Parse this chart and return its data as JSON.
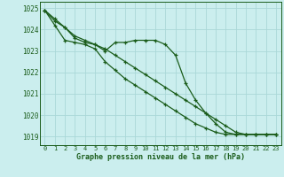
{
  "x": [
    0,
    1,
    2,
    3,
    4,
    5,
    6,
    7,
    8,
    9,
    10,
    11,
    12,
    13,
    14,
    15,
    16,
    17,
    18,
    19,
    20,
    21,
    22,
    23
  ],
  "line1": [
    1024.9,
    1024.5,
    1024.1,
    1023.6,
    1023.4,
    1023.3,
    1023.0,
    1023.4,
    1023.4,
    1023.5,
    1023.5,
    1023.5,
    1023.3,
    1022.8,
    1021.5,
    1020.7,
    1020.1,
    1019.6,
    1019.2,
    1019.1,
    1019.1,
    1019.1,
    1019.1,
    1019.1
  ],
  "line2": [
    1024.9,
    1024.4,
    1024.1,
    1023.7,
    1023.5,
    1023.3,
    1023.1,
    1022.8,
    1022.5,
    1022.2,
    1021.9,
    1021.6,
    1021.3,
    1021.0,
    1020.7,
    1020.4,
    1020.1,
    1019.8,
    1019.5,
    1019.2,
    1019.1,
    1019.1,
    1019.1,
    1019.1
  ],
  "line3": [
    1024.9,
    1024.2,
    1023.5,
    1023.4,
    1023.3,
    1023.1,
    1022.5,
    1022.1,
    1021.7,
    1021.4,
    1021.1,
    1020.8,
    1020.5,
    1020.2,
    1019.9,
    1019.6,
    1019.4,
    1019.2,
    1019.1,
    1019.1,
    1019.1,
    1019.1,
    1019.1,
    1019.1
  ],
  "ylim": [
    1018.6,
    1025.3
  ],
  "yticks": [
    1019,
    1020,
    1021,
    1022,
    1023,
    1024,
    1025
  ],
  "xticks": [
    0,
    1,
    2,
    3,
    4,
    5,
    6,
    7,
    8,
    9,
    10,
    11,
    12,
    13,
    14,
    15,
    16,
    17,
    18,
    19,
    20,
    21,
    22,
    23
  ],
  "xlabel": "Graphe pression niveau de la mer (hPa)",
  "line_color": "#1a5c1a",
  "bg_color": "#cbeeee",
  "grid_color": "#aad8d8",
  "marker": "+",
  "markersize": 3.5,
  "linewidth": 0.9
}
